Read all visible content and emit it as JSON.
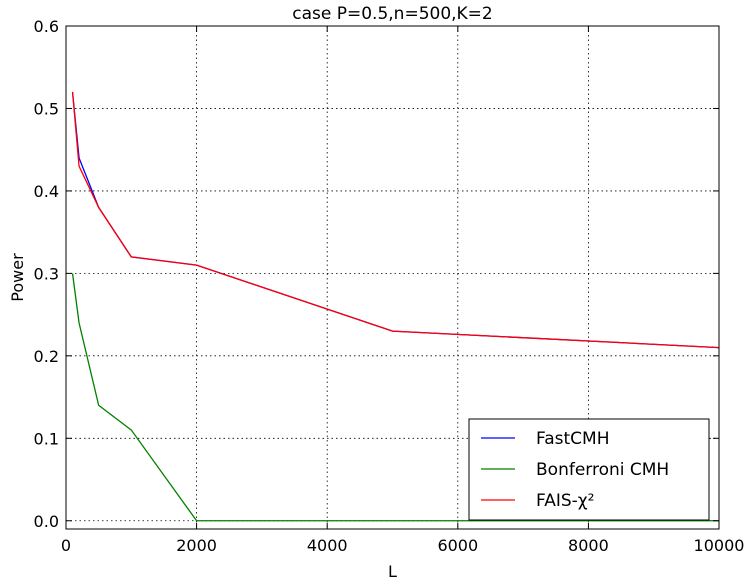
{
  "chart_data": {
    "type": "line",
    "title": "case P=0.5,n=500,K=2",
    "xlabel": "L",
    "ylabel": "Power",
    "xlim": [
      0,
      10000
    ],
    "ylim": [
      -0.01,
      0.6
    ],
    "xticks": [
      0,
      2000,
      4000,
      6000,
      8000,
      10000
    ],
    "yticks": [
      0.0,
      0.1,
      0.2,
      0.3,
      0.4,
      0.5,
      0.6
    ],
    "grid": true,
    "legend_position": "lower-right",
    "series": [
      {
        "name": "FastCMH",
        "color": "#0000ff",
        "x": [
          100,
          200,
          500,
          1000,
          2000,
          5000,
          10000
        ],
        "y": [
          0.52,
          0.44,
          0.38,
          0.32,
          0.31,
          0.23,
          0.21
        ]
      },
      {
        "name": "Bonferroni CMH",
        "color": "#008000",
        "x": [
          100,
          200,
          500,
          1000,
          2000,
          5000,
          10000
        ],
        "y": [
          0.3,
          0.24,
          0.14,
          0.11,
          0.0,
          0.0,
          0.0
        ]
      },
      {
        "name": "FAIS-χ²",
        "color": "#ff0000",
        "x": [
          100,
          200,
          500,
          1000,
          2000,
          5000,
          10000
        ],
        "y": [
          0.52,
          0.43,
          0.38,
          0.32,
          0.31,
          0.23,
          0.21
        ]
      }
    ]
  }
}
